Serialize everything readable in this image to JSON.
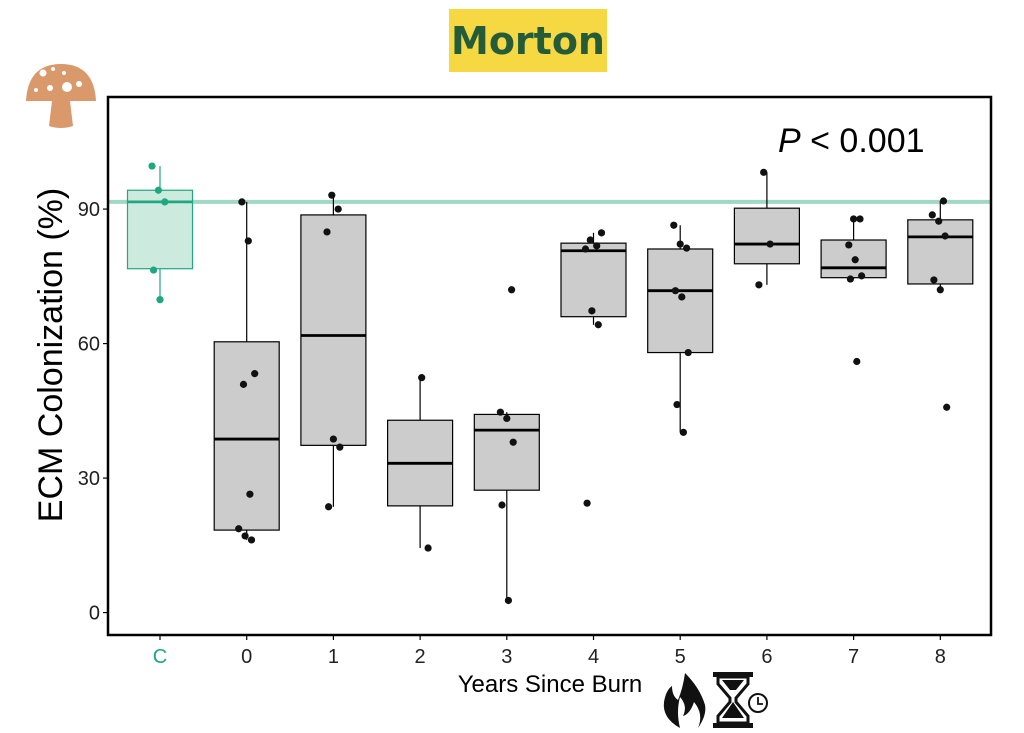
{
  "chart_data": {
    "type": "box",
    "title": "Morton",
    "xlabel": "Years Since Burn",
    "ylabel": "ECM Colonization (%)",
    "annotation": {
      "italic": "P",
      "rest": " < 0.001"
    },
    "ylim": [
      -5,
      115
    ],
    "yticks": [
      0,
      30,
      60,
      90
    ],
    "reference_line": 91.6,
    "categories": [
      "C",
      "0",
      "1",
      "2",
      "3",
      "4",
      "5",
      "6",
      "7",
      "8"
    ],
    "control_color": "#1fa77f",
    "control_fill": "#cdeadf",
    "reference_color": "#9fd8c3",
    "box_fill": "#cccccc",
    "groups": [
      {
        "q1": 76.7,
        "median": 91.6,
        "q3": 94.2,
        "low": 69.8,
        "high": 99.6,
        "points": [
          99.6,
          94.2,
          91.6,
          76.4,
          69.8
        ]
      },
      {
        "q1": 18.4,
        "median": 38.7,
        "q3": 60.4,
        "low": 16.2,
        "high": 91.6,
        "points": [
          91.6,
          82.9,
          53.3,
          50.9,
          26.4,
          18.7,
          17.1,
          16.2
        ]
      },
      {
        "q1": 37.3,
        "median": 61.8,
        "q3": 88.7,
        "low": 23.6,
        "high": 93.1,
        "points": [
          93.1,
          90.0,
          84.9,
          38.7,
          36.9,
          23.6
        ]
      },
      {
        "q1": 23.8,
        "median": 33.3,
        "q3": 42.9,
        "low": 14.4,
        "high": 52.4,
        "points": [
          52.4,
          14.4
        ]
      },
      {
        "q1": 27.3,
        "median": 40.7,
        "q3": 44.2,
        "low": 2.7,
        "high": 44.7,
        "points": [
          72.0,
          44.7,
          43.3,
          38.0,
          24.0,
          2.7
        ]
      },
      {
        "q1": 66.0,
        "median": 80.7,
        "q3": 82.4,
        "low": 64.2,
        "high": 84.7,
        "points": [
          84.7,
          83.1,
          81.8,
          81.1,
          67.3,
          64.2,
          24.4
        ]
      },
      {
        "q1": 58.0,
        "median": 71.8,
        "q3": 81.1,
        "low": 40.2,
        "high": 86.4,
        "points": [
          86.4,
          82.2,
          81.3,
          71.8,
          70.4,
          58.0,
          46.4,
          40.2
        ]
      },
      {
        "q1": 77.8,
        "median": 82.2,
        "q3": 90.2,
        "low": 73.1,
        "high": 98.2,
        "points": [
          98.2,
          82.2,
          73.1
        ]
      },
      {
        "q1": 74.7,
        "median": 76.9,
        "q3": 83.1,
        "low": 74.4,
        "high": 87.8,
        "points": [
          87.8,
          87.8,
          82.0,
          78.7,
          75.1,
          74.4,
          56.0
        ]
      },
      {
        "q1": 73.3,
        "median": 83.8,
        "q3": 87.6,
        "low": 72.0,
        "high": 91.8,
        "points": [
          91.8,
          88.7,
          87.3,
          84.0,
          74.2,
          72.0,
          45.8
        ]
      }
    ]
  },
  "icons": [
    "mushroom-icon",
    "fire-icon",
    "hourglass-icon",
    "clock-icon"
  ]
}
